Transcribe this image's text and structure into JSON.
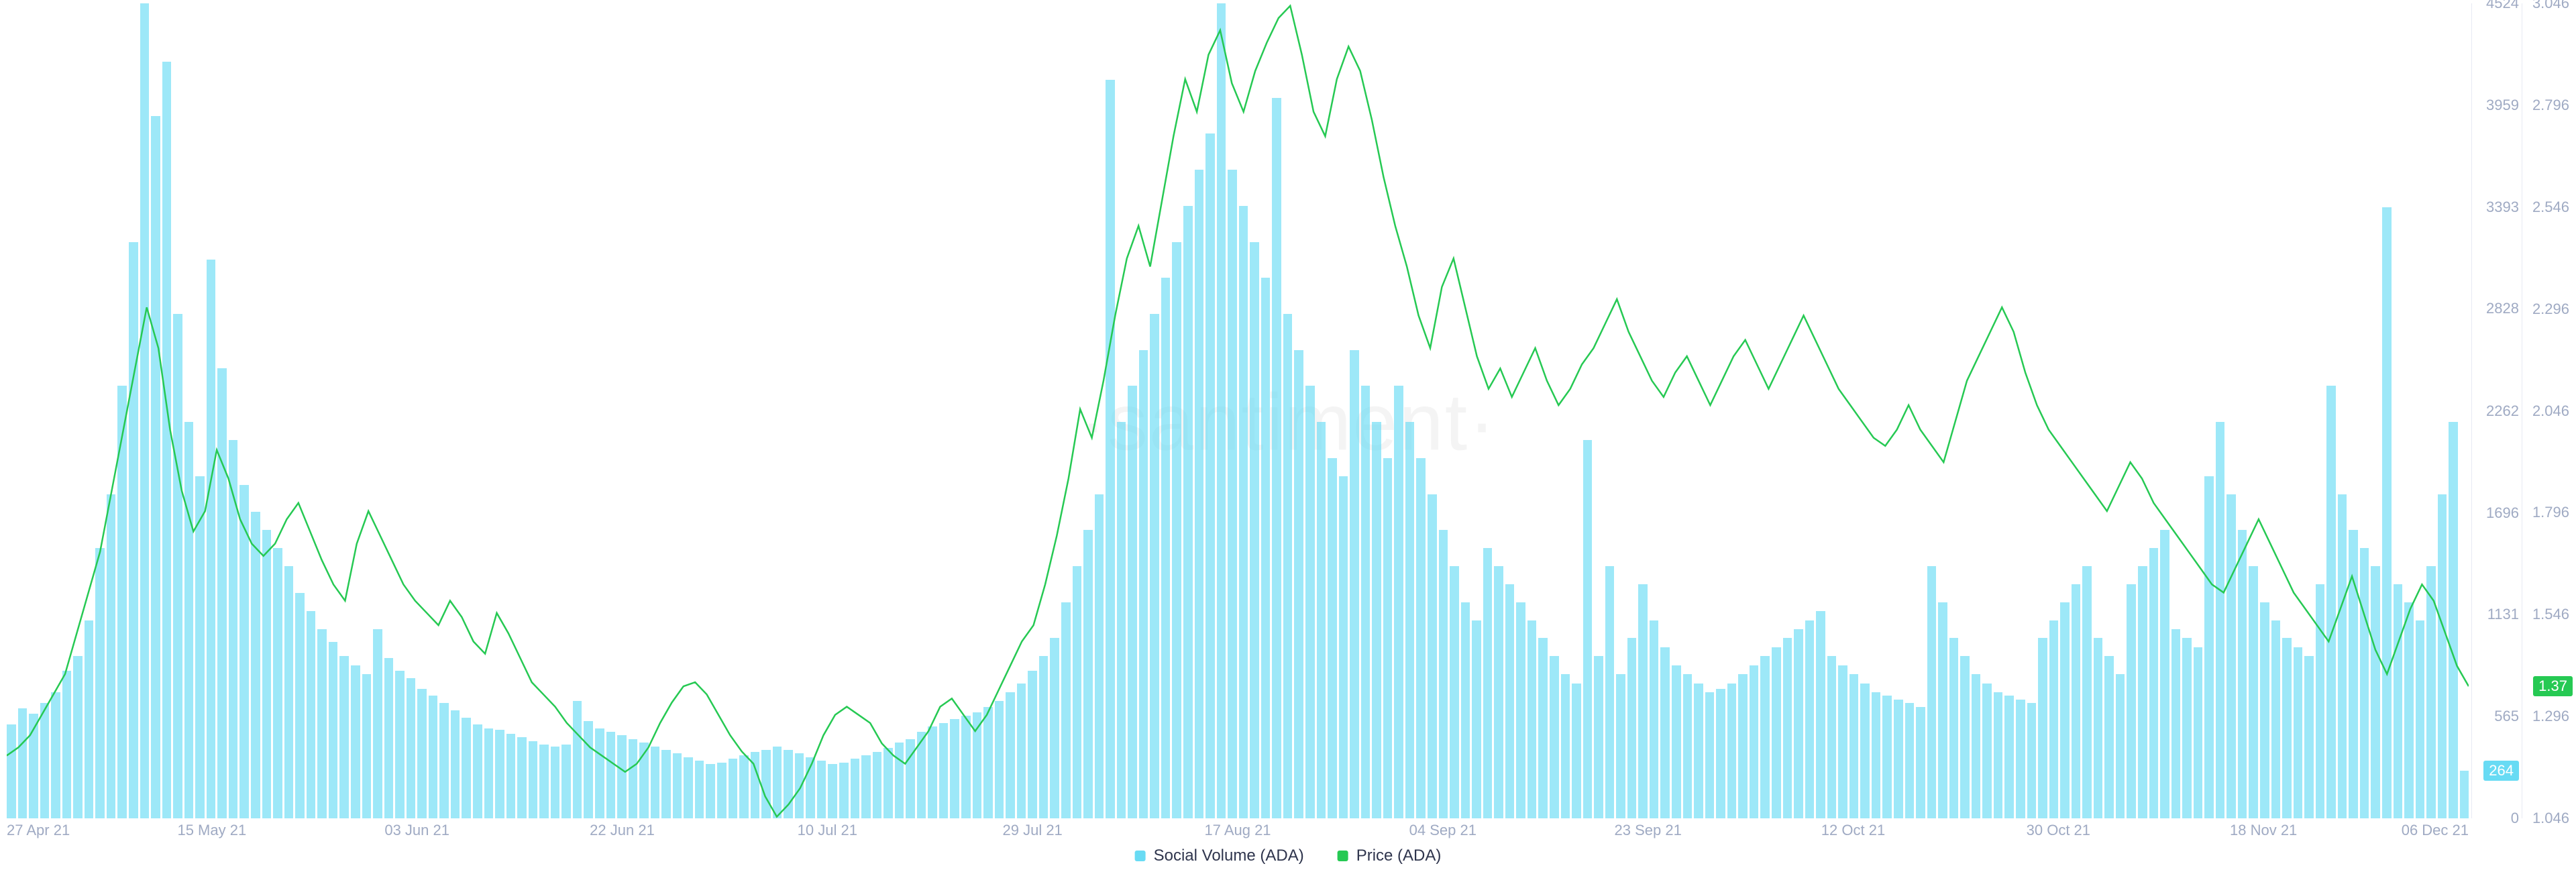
{
  "watermark": "·santiment·",
  "chart": {
    "type": "bar+line",
    "background_color": "#ffffff",
    "bar_color": "#68dbf4",
    "bar_opacity": 0.65,
    "line_color": "#26c953",
    "line_width": 2.5,
    "axis_label_color": "#9faac3",
    "axis_label_fontsize": 22,
    "legend_fontsize": 24,
    "legend_text_color": "#2f354d",
    "x_labels": [
      "27 Apr 21",
      "15 May 21",
      "03 Jun 21",
      "22 Jun 21",
      "10 Jul 21",
      "29 Jul 21",
      "17 Aug 21",
      "04 Sep 21",
      "23 Sep 21",
      "12 Oct 21",
      "30 Oct 21",
      "18 Nov 21",
      "06 Dec 21"
    ],
    "y_left": {
      "min": 0,
      "max": 4524,
      "ticks": [
        0,
        565,
        1131,
        1696,
        2262,
        2828,
        3393,
        3959,
        4524
      ]
    },
    "y_right": {
      "min": 1.046,
      "max": 3.046,
      "ticks": [
        1.046,
        1.296,
        1.546,
        1.796,
        2.046,
        2.296,
        2.546,
        2.796,
        3.046
      ]
    },
    "current_left": {
      "value": 264,
      "label": "264"
    },
    "current_right": {
      "value": 1.37,
      "label": "1.37"
    },
    "social_volume": [
      520,
      610,
      580,
      640,
      700,
      820,
      900,
      1100,
      1500,
      1800,
      2400,
      3200,
      4524,
      3900,
      4200,
      2800,
      2200,
      1900,
      3100,
      2500,
      2100,
      1850,
      1700,
      1600,
      1500,
      1400,
      1250,
      1150,
      1050,
      980,
      900,
      850,
      800,
      1050,
      890,
      820,
      780,
      720,
      680,
      640,
      600,
      560,
      520,
      500,
      490,
      470,
      450,
      430,
      410,
      400,
      410,
      650,
      540,
      500,
      480,
      460,
      440,
      420,
      400,
      380,
      360,
      340,
      320,
      300,
      310,
      330,
      350,
      370,
      380,
      400,
      380,
      360,
      340,
      320,
      300,
      310,
      330,
      350,
      370,
      390,
      420,
      440,
      480,
      510,
      530,
      550,
      570,
      590,
      620,
      650,
      700,
      750,
      820,
      900,
      1000,
      1200,
      1400,
      1600,
      1800,
      4100,
      2200,
      2400,
      2600,
      2800,
      3000,
      3200,
      3400,
      3600,
      3800,
      4524,
      3600,
      3400,
      3200,
      3000,
      4000,
      2800,
      2600,
      2400,
      2200,
      2000,
      1900,
      2600,
      2400,
      2200,
      2000,
      2400,
      2200,
      2000,
      1800,
      1600,
      1400,
      1200,
      1100,
      1500,
      1400,
      1300,
      1200,
      1100,
      1000,
      900,
      800,
      750,
      2100,
      900,
      1400,
      800,
      1000,
      1300,
      1100,
      950,
      850,
      800,
      750,
      700,
      720,
      750,
      800,
      850,
      900,
      950,
      1000,
      1050,
      1100,
      1150,
      900,
      850,
      800,
      750,
      700,
      680,
      660,
      640,
      620,
      1400,
      1200,
      1000,
      900,
      800,
      750,
      700,
      680,
      660,
      640,
      1000,
      1100,
      1200,
      1300,
      1400,
      1000,
      900,
      800,
      1300,
      1400,
      1500,
      1600,
      1050,
      1000,
      950,
      1900,
      2200,
      1800,
      1600,
      1400,
      1200,
      1100,
      1000,
      950,
      900,
      1300,
      2400,
      1800,
      1600,
      1500,
      1400,
      3393,
      1300,
      1200,
      1100,
      1400,
      1800,
      2200,
      264
    ],
    "price": [
      1.2,
      1.22,
      1.25,
      1.3,
      1.35,
      1.4,
      1.5,
      1.6,
      1.7,
      1.85,
      2.0,
      2.15,
      2.3,
      2.2,
      2.0,
      1.85,
      1.75,
      1.8,
      1.95,
      1.88,
      1.78,
      1.72,
      1.69,
      1.72,
      1.78,
      1.82,
      1.75,
      1.68,
      1.62,
      1.58,
      1.72,
      1.8,
      1.74,
      1.68,
      1.62,
      1.58,
      1.55,
      1.52,
      1.58,
      1.54,
      1.48,
      1.45,
      1.55,
      1.5,
      1.44,
      1.38,
      1.35,
      1.32,
      1.28,
      1.25,
      1.22,
      1.2,
      1.18,
      1.16,
      1.18,
      1.22,
      1.28,
      1.33,
      1.37,
      1.38,
      1.35,
      1.3,
      1.25,
      1.21,
      1.18,
      1.1,
      1.05,
      1.08,
      1.12,
      1.18,
      1.25,
      1.3,
      1.32,
      1.3,
      1.28,
      1.23,
      1.2,
      1.18,
      1.22,
      1.26,
      1.32,
      1.34,
      1.3,
      1.26,
      1.3,
      1.36,
      1.42,
      1.48,
      1.52,
      1.62,
      1.74,
      1.88,
      2.05,
      1.98,
      2.12,
      2.28,
      2.42,
      2.5,
      2.4,
      2.56,
      2.72,
      2.86,
      2.78,
      2.92,
      2.98,
      2.85,
      2.78,
      2.88,
      2.95,
      3.01,
      3.04,
      2.92,
      2.78,
      2.72,
      2.86,
      2.94,
      2.88,
      2.76,
      2.62,
      2.5,
      2.4,
      2.28,
      2.2,
      2.35,
      2.42,
      2.3,
      2.18,
      2.1,
      2.15,
      2.08,
      2.14,
      2.2,
      2.12,
      2.06,
      2.1,
      2.16,
      2.2,
      2.26,
      2.32,
      2.24,
      2.18,
      2.12,
      2.08,
      2.14,
      2.18,
      2.12,
      2.06,
      2.12,
      2.18,
      2.22,
      2.16,
      2.1,
      2.16,
      2.22,
      2.28,
      2.22,
      2.16,
      2.1,
      2.06,
      2.02,
      1.98,
      1.96,
      2.0,
      2.06,
      2.0,
      1.96,
      1.92,
      2.02,
      2.12,
      2.18,
      2.24,
      2.3,
      2.24,
      2.14,
      2.06,
      2.0,
      1.96,
      1.92,
      1.88,
      1.84,
      1.8,
      1.86,
      1.92,
      1.88,
      1.82,
      1.78,
      1.74,
      1.7,
      1.66,
      1.62,
      1.6,
      1.66,
      1.72,
      1.78,
      1.72,
      1.66,
      1.6,
      1.56,
      1.52,
      1.48,
      1.56,
      1.64,
      1.55,
      1.46,
      1.4,
      1.48,
      1.56,
      1.62,
      1.58,
      1.5,
      1.42,
      1.37
    ]
  },
  "legend": {
    "items": [
      {
        "color": "#68dbf4",
        "label": "Social Volume (ADA)"
      },
      {
        "color": "#26c953",
        "label": "Price (ADA)"
      }
    ]
  }
}
